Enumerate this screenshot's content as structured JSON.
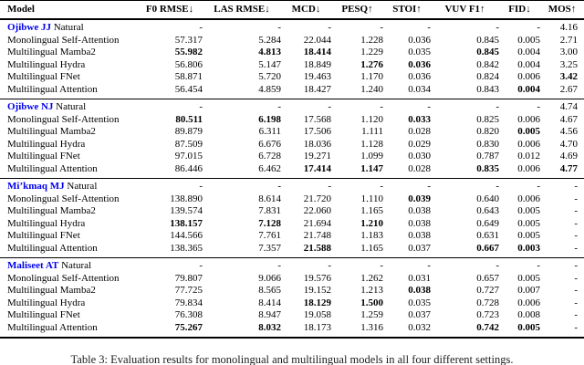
{
  "accent_color": "#0000EE",
  "caption": "Table 3: Evaluation results for monolingual and multilingual models in all four different settings.",
  "table": {
    "columns": [
      {
        "label": "Model",
        "key": "model"
      },
      {
        "label": "F0 RMSE↓",
        "key": "f0-rmse"
      },
      {
        "label": "LAS RMSE↓",
        "key": "las-rmse"
      },
      {
        "label": "MCD↓",
        "key": "mcd"
      },
      {
        "label": "PESQ↑",
        "key": "pesq"
      },
      {
        "label": "STOI↑",
        "key": "stoi"
      },
      {
        "label": "VUV F1↑",
        "key": "vuv-f1"
      },
      {
        "label": "FID↓",
        "key": "fid"
      },
      {
        "label": "MOS↑",
        "key": "mos"
      }
    ],
    "sections": [
      {
        "group_label": "Ojibwe JJ",
        "rows": [
          {
            "model": "Natural",
            "values": [
              "-",
              "-",
              "-",
              "-",
              "-",
              "-",
              "-",
              "4.16"
            ],
            "bold": []
          },
          {
            "model": "Monolingual Self-Attention",
            "values": [
              "57.317",
              "5.284",
              "22.044",
              "1.228",
              "0.036",
              "0.845",
              "0.005",
              "2.71"
            ],
            "bold": []
          },
          {
            "model": "Multilingual Mamba2",
            "values": [
              "55.982",
              "4.813",
              "18.414",
              "1.229",
              "0.035",
              "0.845",
              "0.004",
              "3.00"
            ],
            "bold": [
              0,
              1,
              2,
              5
            ]
          },
          {
            "model": "Multilingual Hydra",
            "values": [
              "56.806",
              "5.147",
              "18.849",
              "1.276",
              "0.036",
              "0.842",
              "0.004",
              "3.25"
            ],
            "bold": [
              3,
              4
            ]
          },
          {
            "model": "Multilingual FNet",
            "values": [
              "58.871",
              "5.720",
              "19.463",
              "1.170",
              "0.036",
              "0.824",
              "0.006",
              "3.42"
            ],
            "bold": [
              7
            ]
          },
          {
            "model": "Multilingual Attention",
            "values": [
              "56.454",
              "4.859",
              "18.427",
              "1.240",
              "0.034",
              "0.843",
              "0.004",
              "2.67"
            ],
            "bold": [
              6
            ]
          }
        ]
      },
      {
        "group_label": "Ojibwe NJ",
        "rows": [
          {
            "model": "Natural",
            "values": [
              "-",
              "-",
              "-",
              "-",
              "-",
              "-",
              "-",
              "4.74"
            ],
            "bold": []
          },
          {
            "model": "Monolingual Self-Attention",
            "values": [
              "80.511",
              "6.198",
              "17.568",
              "1.120",
              "0.033",
              "0.825",
              "0.006",
              "4.67"
            ],
            "bold": [
              0,
              1,
              4
            ]
          },
          {
            "model": "Multilingual Mamba2",
            "values": [
              "89.879",
              "6.311",
              "17.506",
              "1.111",
              "0.028",
              "0.820",
              "0.005",
              "4.56"
            ],
            "bold": [
              6
            ]
          },
          {
            "model": "Multilingual Hydra",
            "values": [
              "87.509",
              "6.676",
              "18.036",
              "1.128",
              "0.029",
              "0.830",
              "0.006",
              "4.70"
            ],
            "bold": []
          },
          {
            "model": "Multilingual FNet",
            "values": [
              "97.015",
              "6.728",
              "19.271",
              "1.099",
              "0.030",
              "0.787",
              "0.012",
              "4.69"
            ],
            "bold": []
          },
          {
            "model": "Multilingual Attention",
            "values": [
              "86.446",
              "6.462",
              "17.414",
              "1.147",
              "0.028",
              "0.835",
              "0.006",
              "4.77"
            ],
            "bold": [
              2,
              3,
              5,
              7
            ]
          }
        ]
      },
      {
        "group_label": "Mi’kmaq MJ",
        "rows": [
          {
            "model": "Natural",
            "values": [
              "-",
              "-",
              "-",
              "-",
              "-",
              "-",
              "-",
              "-"
            ],
            "bold": []
          },
          {
            "model": "Monolingual Self-Attention",
            "values": [
              "138.890",
              "8.614",
              "21.720",
              "1.110",
              "0.039",
              "0.640",
              "0.006",
              "-"
            ],
            "bold": [
              4
            ]
          },
          {
            "model": "Multilingual Mamba2",
            "values": [
              "139.574",
              "7.831",
              "22.060",
              "1.165",
              "0.038",
              "0.643",
              "0.005",
              "-"
            ],
            "bold": []
          },
          {
            "model": "Multilingual Hydra",
            "values": [
              "138.157",
              "7.128",
              "21.694",
              "1.210",
              "0.038",
              "0.649",
              "0.005",
              "-"
            ],
            "bold": [
              0,
              1,
              3
            ]
          },
          {
            "model": "Multilingual FNet",
            "values": [
              "144.566",
              "7.761",
              "21.748",
              "1.183",
              "0.038",
              "0.631",
              "0.005",
              "-"
            ],
            "bold": []
          },
          {
            "model": "Multilingual Attention",
            "values": [
              "138.365",
              "7.357",
              "21.588",
              "1.165",
              "0.037",
              "0.667",
              "0.003",
              "-"
            ],
            "bold": [
              2,
              5,
              6
            ]
          }
        ]
      },
      {
        "group_label": "Maliseet AT",
        "rows": [
          {
            "model": "Natural",
            "values": [
              "-",
              "-",
              "-",
              "-",
              "-",
              "-",
              "-",
              "-"
            ],
            "bold": []
          },
          {
            "model": "Monolingual Self-Attention",
            "values": [
              "79.807",
              "9.066",
              "19.576",
              "1.262",
              "0.031",
              "0.657",
              "0.005",
              "-"
            ],
            "bold": []
          },
          {
            "model": "Multilingual Mamba2",
            "values": [
              "77.725",
              "8.565",
              "19.152",
              "1.213",
              "0.038",
              "0.727",
              "0.007",
              "-"
            ],
            "bold": [
              4
            ]
          },
          {
            "model": "Multilingual Hydra",
            "values": [
              "79.834",
              "8.414",
              "18.129",
              "1.500",
              "0.035",
              "0.728",
              "0.006",
              "-"
            ],
            "bold": [
              2,
              3
            ]
          },
          {
            "model": "Multilingual FNet",
            "values": [
              "76.308",
              "8.947",
              "19.058",
              "1.259",
              "0.037",
              "0.723",
              "0.008",
              "-"
            ],
            "bold": []
          },
          {
            "model": "Multilingual Attention",
            "values": [
              "75.267",
              "8.032",
              "18.173",
              "1.316",
              "0.032",
              "0.742",
              "0.005",
              "-"
            ],
            "bold": [
              0,
              1,
              5,
              6
            ]
          }
        ]
      }
    ]
  }
}
